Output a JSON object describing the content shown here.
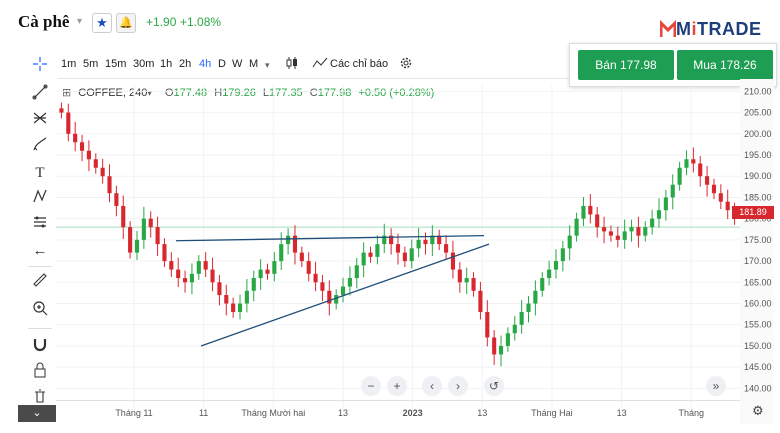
{
  "header": {
    "title": "Cà phê",
    "change": "+1.90",
    "change_pct": "+1.08%",
    "logo": {
      "prefix": "M",
      "accent": "i",
      "rest": "TRADE"
    }
  },
  "toolbar": {
    "timeframes": [
      "1m",
      "5m",
      "15m",
      "30m",
      "1h",
      "2h",
      "4h",
      "D",
      "W",
      "M"
    ],
    "active_timeframe": "4h",
    "indicators_label": "Các chỉ báo"
  },
  "trade": {
    "sell_label": "Bán 177.98",
    "buy_label": "Mua 178.26",
    "button_color": "#1e9e52"
  },
  "legend": {
    "symbol": "COFFEE, 240",
    "open_label": "O",
    "open": "177.48",
    "high_label": "H",
    "high": "179.26",
    "low_label": "L",
    "low": "177.35",
    "close_label": "C",
    "close": "177.98",
    "change": "+0.50 (+0.28%)"
  },
  "chart_data": {
    "type": "candlestick",
    "y_ticks": [
      "210.00",
      "205.00",
      "200.00",
      "195.00",
      "190.00",
      "185.00",
      "180.00",
      "175.00",
      "170.00",
      "165.00",
      "160.00",
      "155.00",
      "150.00",
      "145.00",
      "140.00"
    ],
    "ylim": [
      137.5,
      211.5
    ],
    "x_ticks": [
      "Tháng 11",
      "11",
      "Tháng Mười hai",
      "13",
      "2023",
      "13",
      "Tháng Hai",
      "13",
      "Tháng"
    ],
    "last_price": "181.89",
    "reference_line": 178.0,
    "close_series": [
      205,
      200,
      198,
      196,
      194,
      192,
      190,
      186,
      183,
      178,
      172,
      175,
      180,
      178,
      174,
      170,
      168,
      166,
      165,
      167,
      170,
      168,
      165,
      162,
      160,
      158,
      160,
      163,
      166,
      168,
      167,
      170,
      174,
      176,
      172,
      170,
      167,
      165,
      163,
      160,
      162,
      164,
      166,
      169,
      172,
      171,
      174,
      176,
      174,
      172,
      170,
      173,
      175,
      174,
      176,
      174,
      172,
      168,
      165,
      166,
      163,
      158,
      152,
      148,
      150,
      153,
      155,
      158,
      160,
      163,
      166,
      168,
      170,
      173,
      176,
      180,
      183,
      181,
      178,
      177,
      176,
      175,
      177,
      178,
      176,
      178,
      180,
      182,
      185,
      188,
      192,
      194,
      193,
      190,
      188,
      186,
      184,
      182,
      181
    ],
    "up_color": "#27a845",
    "down_color": "#d8282f",
    "drawn_lines_color": "#1f4e79"
  },
  "nav": [
    "−",
    "+",
    "‹",
    "›",
    "↺",
    "»"
  ],
  "icons": {
    "crosshair": "crosshair-icon",
    "trend": "trendline-icon",
    "fib": "fib-icon",
    "brush": "brush-icon",
    "text": "text-icon",
    "pattern": "pattern-icon",
    "prediction": "prediction-icon",
    "back": "back-arrow-icon",
    "ruler": "ruler-icon",
    "zoom": "zoom-icon",
    "magnet": "magnet-icon",
    "lock": "lock-icon",
    "trash": "trash-icon"
  }
}
